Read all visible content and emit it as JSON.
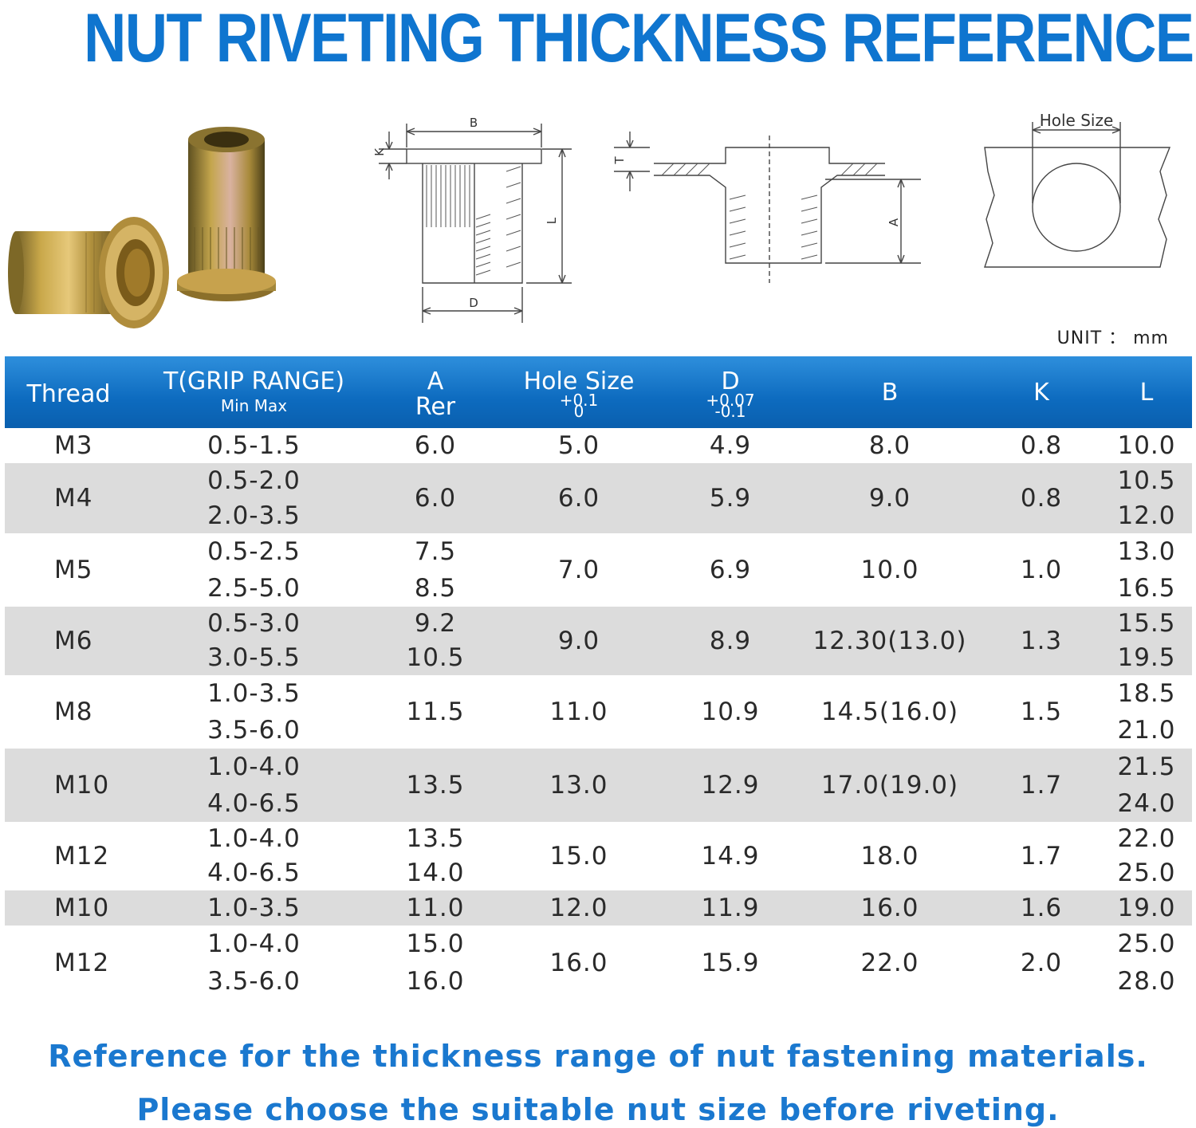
{
  "title": "NUT RIVETING THICKNESS REFERENCE",
  "diagram": {
    "label_b": "B",
    "label_k": "K",
    "label_l": "L",
    "label_d": "D",
    "label_t": "T",
    "label_a": "A",
    "label_hole": "Hole Size"
  },
  "unit": "UNIT ： mm",
  "table": {
    "headers": {
      "thread": "Thread",
      "grip": "T(GRIP RANGE)",
      "grip_sub": "Min Max",
      "a": "A",
      "a_sub": "Rer",
      "hole": "Hole Size",
      "hole_tol_top": "+0.1",
      "hole_tol_bot": "0",
      "d": "D",
      "d_tol_top": "+0.07",
      "d_tol_bot": "-0.1",
      "b": "B",
      "k": "K",
      "l": "L"
    },
    "rows": [
      {
        "thread": "M3",
        "grip": [
          "0.5-1.5"
        ],
        "a": [
          "6.0"
        ],
        "hole": "5.0",
        "d": "4.9",
        "b": "8.0",
        "k": "0.8",
        "l": [
          "10.0"
        ]
      },
      {
        "thread": "M4",
        "grip": [
          "0.5-2.0",
          "2.0-3.5"
        ],
        "a": [
          "6.0"
        ],
        "hole": "6.0",
        "d": "5.9",
        "b": "9.0",
        "k": "0.8",
        "l": [
          "10.5",
          "12.0"
        ]
      },
      {
        "thread": "M5",
        "grip": [
          "0.5-2.5",
          "2.5-5.0"
        ],
        "a": [
          "7.5",
          "8.5"
        ],
        "hole": "7.0",
        "d": "6.9",
        "b": "10.0",
        "k": "1.0",
        "l": [
          "13.0",
          "16.5"
        ]
      },
      {
        "thread": "M6",
        "grip": [
          "0.5-3.0",
          "3.0-5.5"
        ],
        "a": [
          "9.2",
          "10.5"
        ],
        "hole": "9.0",
        "d": "8.9",
        "b": "12.30(13.0)",
        "k": "1.3",
        "l": [
          "15.5",
          "19.5"
        ]
      },
      {
        "thread": "M8",
        "grip": [
          "1.0-3.5",
          "3.5-6.0"
        ],
        "a": [
          "11.5"
        ],
        "hole": "11.0",
        "d": "10.9",
        "b": "14.5(16.0)",
        "k": "1.5",
        "l": [
          "18.5",
          "21.0"
        ]
      },
      {
        "thread": "M10",
        "grip": [
          "1.0-4.0",
          "4.0-6.5"
        ],
        "a": [
          "13.5"
        ],
        "hole": "13.0",
        "d": "12.9",
        "b": "17.0(19.0)",
        "k": "1.7",
        "l": [
          "21.5",
          "24.0"
        ]
      },
      {
        "thread": "M12",
        "grip": [
          "1.0-4.0",
          "4.0-6.5"
        ],
        "a": [
          "13.5",
          "14.0"
        ],
        "hole": "15.0",
        "d": "14.9",
        "b": "18.0",
        "k": "1.7",
        "l": [
          "22.0",
          "25.0"
        ]
      },
      {
        "thread": "M10",
        "grip": [
          "1.0-3.5"
        ],
        "a": [
          "11.0"
        ],
        "hole": "12.0",
        "d": "11.9",
        "b": "16.0",
        "k": "1.6",
        "l": [
          "19.0"
        ]
      },
      {
        "thread": "M12",
        "grip": [
          "1.0-4.0",
          "3.5-6.0"
        ],
        "a": [
          "15.0",
          "16.0"
        ],
        "hole": "16.0",
        "d": "15.9",
        "b": "22.0",
        "k": "2.0",
        "l": [
          "25.0",
          "28.0"
        ]
      }
    ]
  },
  "footer": {
    "line1": "Reference for the thickness range of nut fastening materials.",
    "line2": "Please choose the suitable nut size before riveting."
  },
  "colors": {
    "title_blue": "#0f75cf",
    "header_blue": "#0d6bbf",
    "row_grey": "#dcdcdc",
    "footer_blue": "#1a78cf",
    "nut_brass": "#b8953a"
  }
}
